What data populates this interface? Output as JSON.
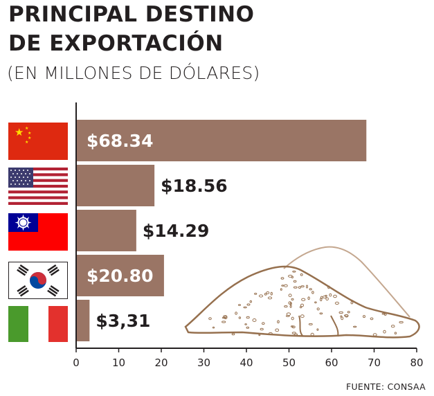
{
  "header": {
    "title_line1": "PRINCIPAL DESTINO",
    "title_line2": "DE EXPORTACIÓN",
    "subtitle": "(EN MILLONES DE DÓLARES)"
  },
  "footer": {
    "source": "FUENTE: CONSAA"
  },
  "colors": {
    "bar": "#9a7565",
    "bar_stroke": "#ffffff",
    "bar_label_inside": "#ffffff",
    "bar_label_outside": "#231f20",
    "axis": "#231f20",
    "mound_outline": "#96704e",
    "mound_light": "#c4a78f"
  },
  "chart_data": {
    "type": "bar",
    "orientation": "horizontal",
    "categories": [
      "China",
      "Estados Unidos",
      "Taiwán",
      "Corea del Sur",
      "Italia"
    ],
    "values": [
      68.34,
      18.56,
      14.29,
      20.8,
      3.31
    ],
    "value_labels": [
      "$68.34",
      "$18.56",
      "$14.29",
      "$20.80",
      "$3,31"
    ],
    "category_icons": [
      "china-flag-icon",
      "usa-flag-icon",
      "taiwan-flag-icon",
      "south-korea-flag-icon",
      "italy-flag-icon"
    ],
    "xlim": [
      0,
      80
    ],
    "xticks": [
      0,
      10,
      20,
      30,
      40,
      50,
      60,
      70,
      80
    ],
    "xlabel": "",
    "ylabel": "",
    "grid": false,
    "legend": "none"
  }
}
